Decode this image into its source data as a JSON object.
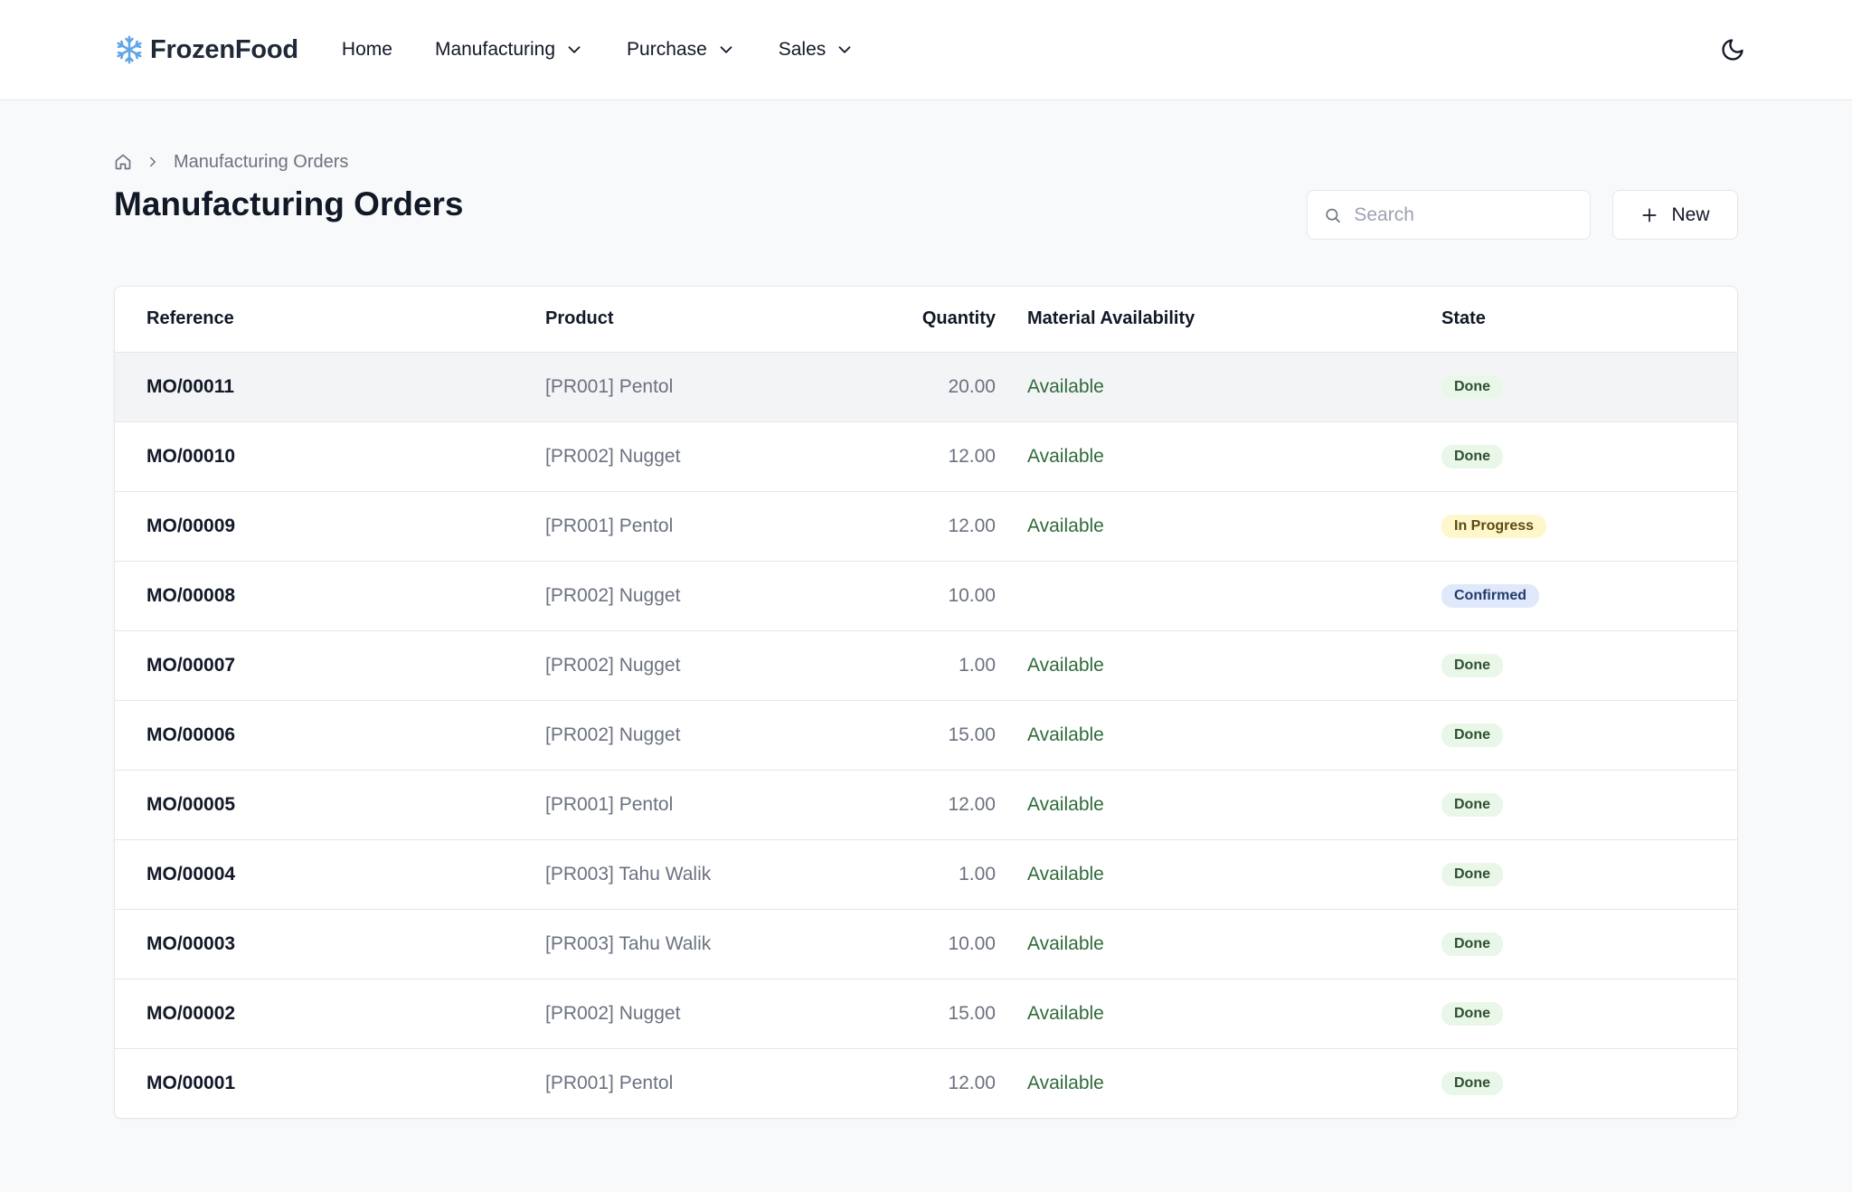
{
  "app": {
    "brand": "FrozenFood",
    "nav": [
      {
        "label": "Home",
        "dropdown": false
      },
      {
        "label": "Manufacturing",
        "dropdown": true
      },
      {
        "label": "Purchase",
        "dropdown": true
      },
      {
        "label": "Sales",
        "dropdown": true
      }
    ],
    "brand_color": "#60a5e6"
  },
  "breadcrumb": {
    "current": "Manufacturing Orders"
  },
  "page": {
    "title": "Manufacturing Orders",
    "search_placeholder": "Search",
    "new_label": "New"
  },
  "table": {
    "columns": [
      "Reference",
      "Product",
      "Quantity",
      "Material Availability",
      "State"
    ],
    "rows": [
      {
        "ref": "MO/00011",
        "product": "[PR001] Pentol",
        "qty": "20.00",
        "availability": "Available",
        "state": "Done",
        "state_kind": "done"
      },
      {
        "ref": "MO/00010",
        "product": "[PR002] Nugget",
        "qty": "12.00",
        "availability": "Available",
        "state": "Done",
        "state_kind": "done"
      },
      {
        "ref": "MO/00009",
        "product": "[PR001] Pentol",
        "qty": "12.00",
        "availability": "Available",
        "state": "In Progress",
        "state_kind": "progress"
      },
      {
        "ref": "MO/00008",
        "product": "[PR002] Nugget",
        "qty": "10.00",
        "availability": "",
        "state": "Confirmed",
        "state_kind": "confirmed"
      },
      {
        "ref": "MO/00007",
        "product": "[PR002] Nugget",
        "qty": "1.00",
        "availability": "Available",
        "state": "Done",
        "state_kind": "done"
      },
      {
        "ref": "MO/00006",
        "product": "[PR002] Nugget",
        "qty": "15.00",
        "availability": "Available",
        "state": "Done",
        "state_kind": "done"
      },
      {
        "ref": "MO/00005",
        "product": "[PR001] Pentol",
        "qty": "12.00",
        "availability": "Available",
        "state": "Done",
        "state_kind": "done"
      },
      {
        "ref": "MO/00004",
        "product": "[PR003] Tahu Walik",
        "qty": "1.00",
        "availability": "Available",
        "state": "Done",
        "state_kind": "done"
      },
      {
        "ref": "MO/00003",
        "product": "[PR003] Tahu Walik",
        "qty": "10.00",
        "availability": "Available",
        "state": "Done",
        "state_kind": "done"
      },
      {
        "ref": "MO/00002",
        "product": "[PR002] Nugget",
        "qty": "15.00",
        "availability": "Available",
        "state": "Done",
        "state_kind": "done"
      },
      {
        "ref": "MO/00001",
        "product": "[PR001] Pentol",
        "qty": "12.00",
        "availability": "Available",
        "state": "Done",
        "state_kind": "done"
      }
    ]
  }
}
